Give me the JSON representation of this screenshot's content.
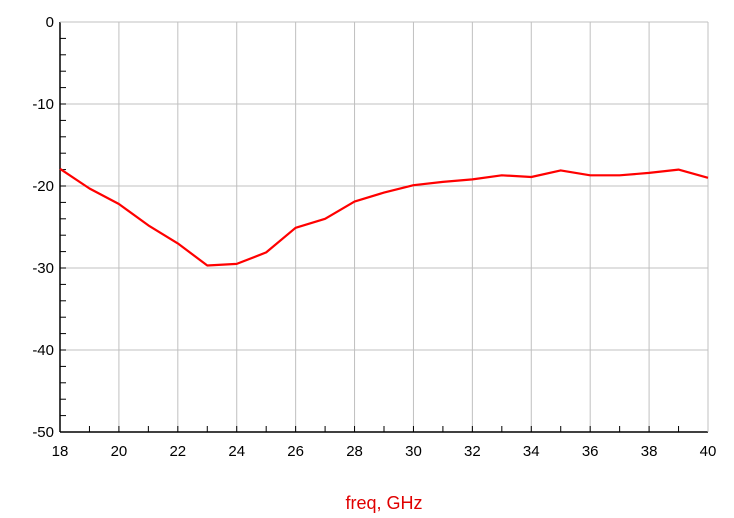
{
  "chart_data": {
    "type": "line",
    "title": "",
    "xlabel": "freq, GHz",
    "ylabel": "",
    "xlim": [
      18,
      40
    ],
    "ylim": [
      -50,
      0
    ],
    "x_major_ticks": [
      18,
      20,
      22,
      24,
      26,
      28,
      30,
      32,
      34,
      36,
      38,
      40
    ],
    "x_minor_step": 1,
    "y_major_ticks": [
      0,
      -10,
      -20,
      -30,
      -40,
      -50
    ],
    "y_minor_step": 2,
    "grid": true,
    "colors": {
      "series": "#ff0000",
      "xlabel": "#e00000",
      "grid": "#c0c0c0",
      "axis": "#000000"
    },
    "series": [
      {
        "x": [
          18,
          19,
          20,
          21,
          22,
          23,
          24,
          25,
          26,
          27,
          28,
          29,
          30,
          31,
          32,
          33,
          34,
          35,
          36,
          37,
          38,
          39,
          40
        ],
        "y": [
          -17.9,
          -20.3,
          -22.2,
          -24.8,
          -27.0,
          -29.7,
          -29.5,
          -28.1,
          -25.1,
          -24.0,
          -21.9,
          -20.8,
          -19.9,
          -19.5,
          -19.2,
          -18.7,
          -18.9,
          -18.1,
          -18.7,
          -18.7,
          -18.4,
          -18.0,
          -19.0
        ]
      }
    ]
  }
}
